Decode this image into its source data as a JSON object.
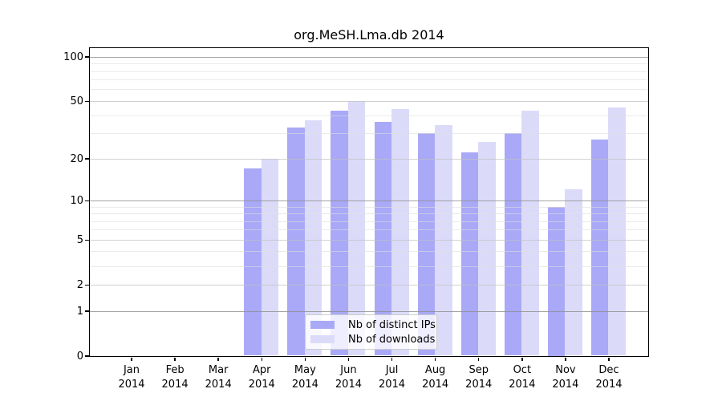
{
  "title": "org.MeSH.Lma.db 2014",
  "colors": {
    "distinct_ips": "#a9a9f8",
    "downloads": "#dbdbf9",
    "axis": "#000000",
    "grid_strong": "#8f8f8f",
    "grid_major": "#c2c2c2",
    "grid_minor": "#dedede"
  },
  "y_axis": {
    "tick_labels": [
      "100",
      "50",
      "20",
      "10",
      "5",
      "2",
      "1",
      "0"
    ],
    "tick_values": [
      100,
      50,
      20,
      10,
      5,
      2,
      1,
      0
    ]
  },
  "x_axis": {
    "months": [
      "Jan",
      "Feb",
      "Mar",
      "Apr",
      "May",
      "Jun",
      "Jul",
      "Aug",
      "Sep",
      "Oct",
      "Nov",
      "Dec"
    ],
    "year": "2014"
  },
  "legend": {
    "items": [
      {
        "label": "Nb of distinct IPs",
        "series": "distinct_ips"
      },
      {
        "label": "Nb of downloads",
        "series": "downloads"
      }
    ]
  },
  "chart_data": {
    "type": "bar",
    "title": "org.MeSH.Lma.db 2014",
    "categories": [
      "Jan 2014",
      "Feb 2014",
      "Mar 2014",
      "Apr 2014",
      "May 2014",
      "Jun 2014",
      "Jul 2014",
      "Aug 2014",
      "Sep 2014",
      "Oct 2014",
      "Nov 2014",
      "Dec 2014"
    ],
    "series": [
      {
        "name": "Nb of distinct IPs",
        "color": "#a9a9f8",
        "values": [
          0,
          0,
          0,
          17,
          33,
          43,
          36,
          30,
          22,
          30,
          9,
          27
        ]
      },
      {
        "name": "Nb of downloads",
        "color": "#dbdbf9",
        "values": [
          0,
          0,
          0,
          20,
          37,
          50,
          44,
          34,
          26,
          43,
          12,
          45
        ]
      }
    ],
    "yscale": "log1p",
    "ylim": [
      0,
      115
    ],
    "yticks": [
      0,
      1,
      2,
      5,
      10,
      20,
      50,
      100
    ],
    "minor_gridlines": [
      3,
      4,
      6,
      7,
      8,
      9,
      30,
      40,
      60,
      70,
      80,
      90
    ],
    "grid": true,
    "legend_position": "lower center"
  }
}
